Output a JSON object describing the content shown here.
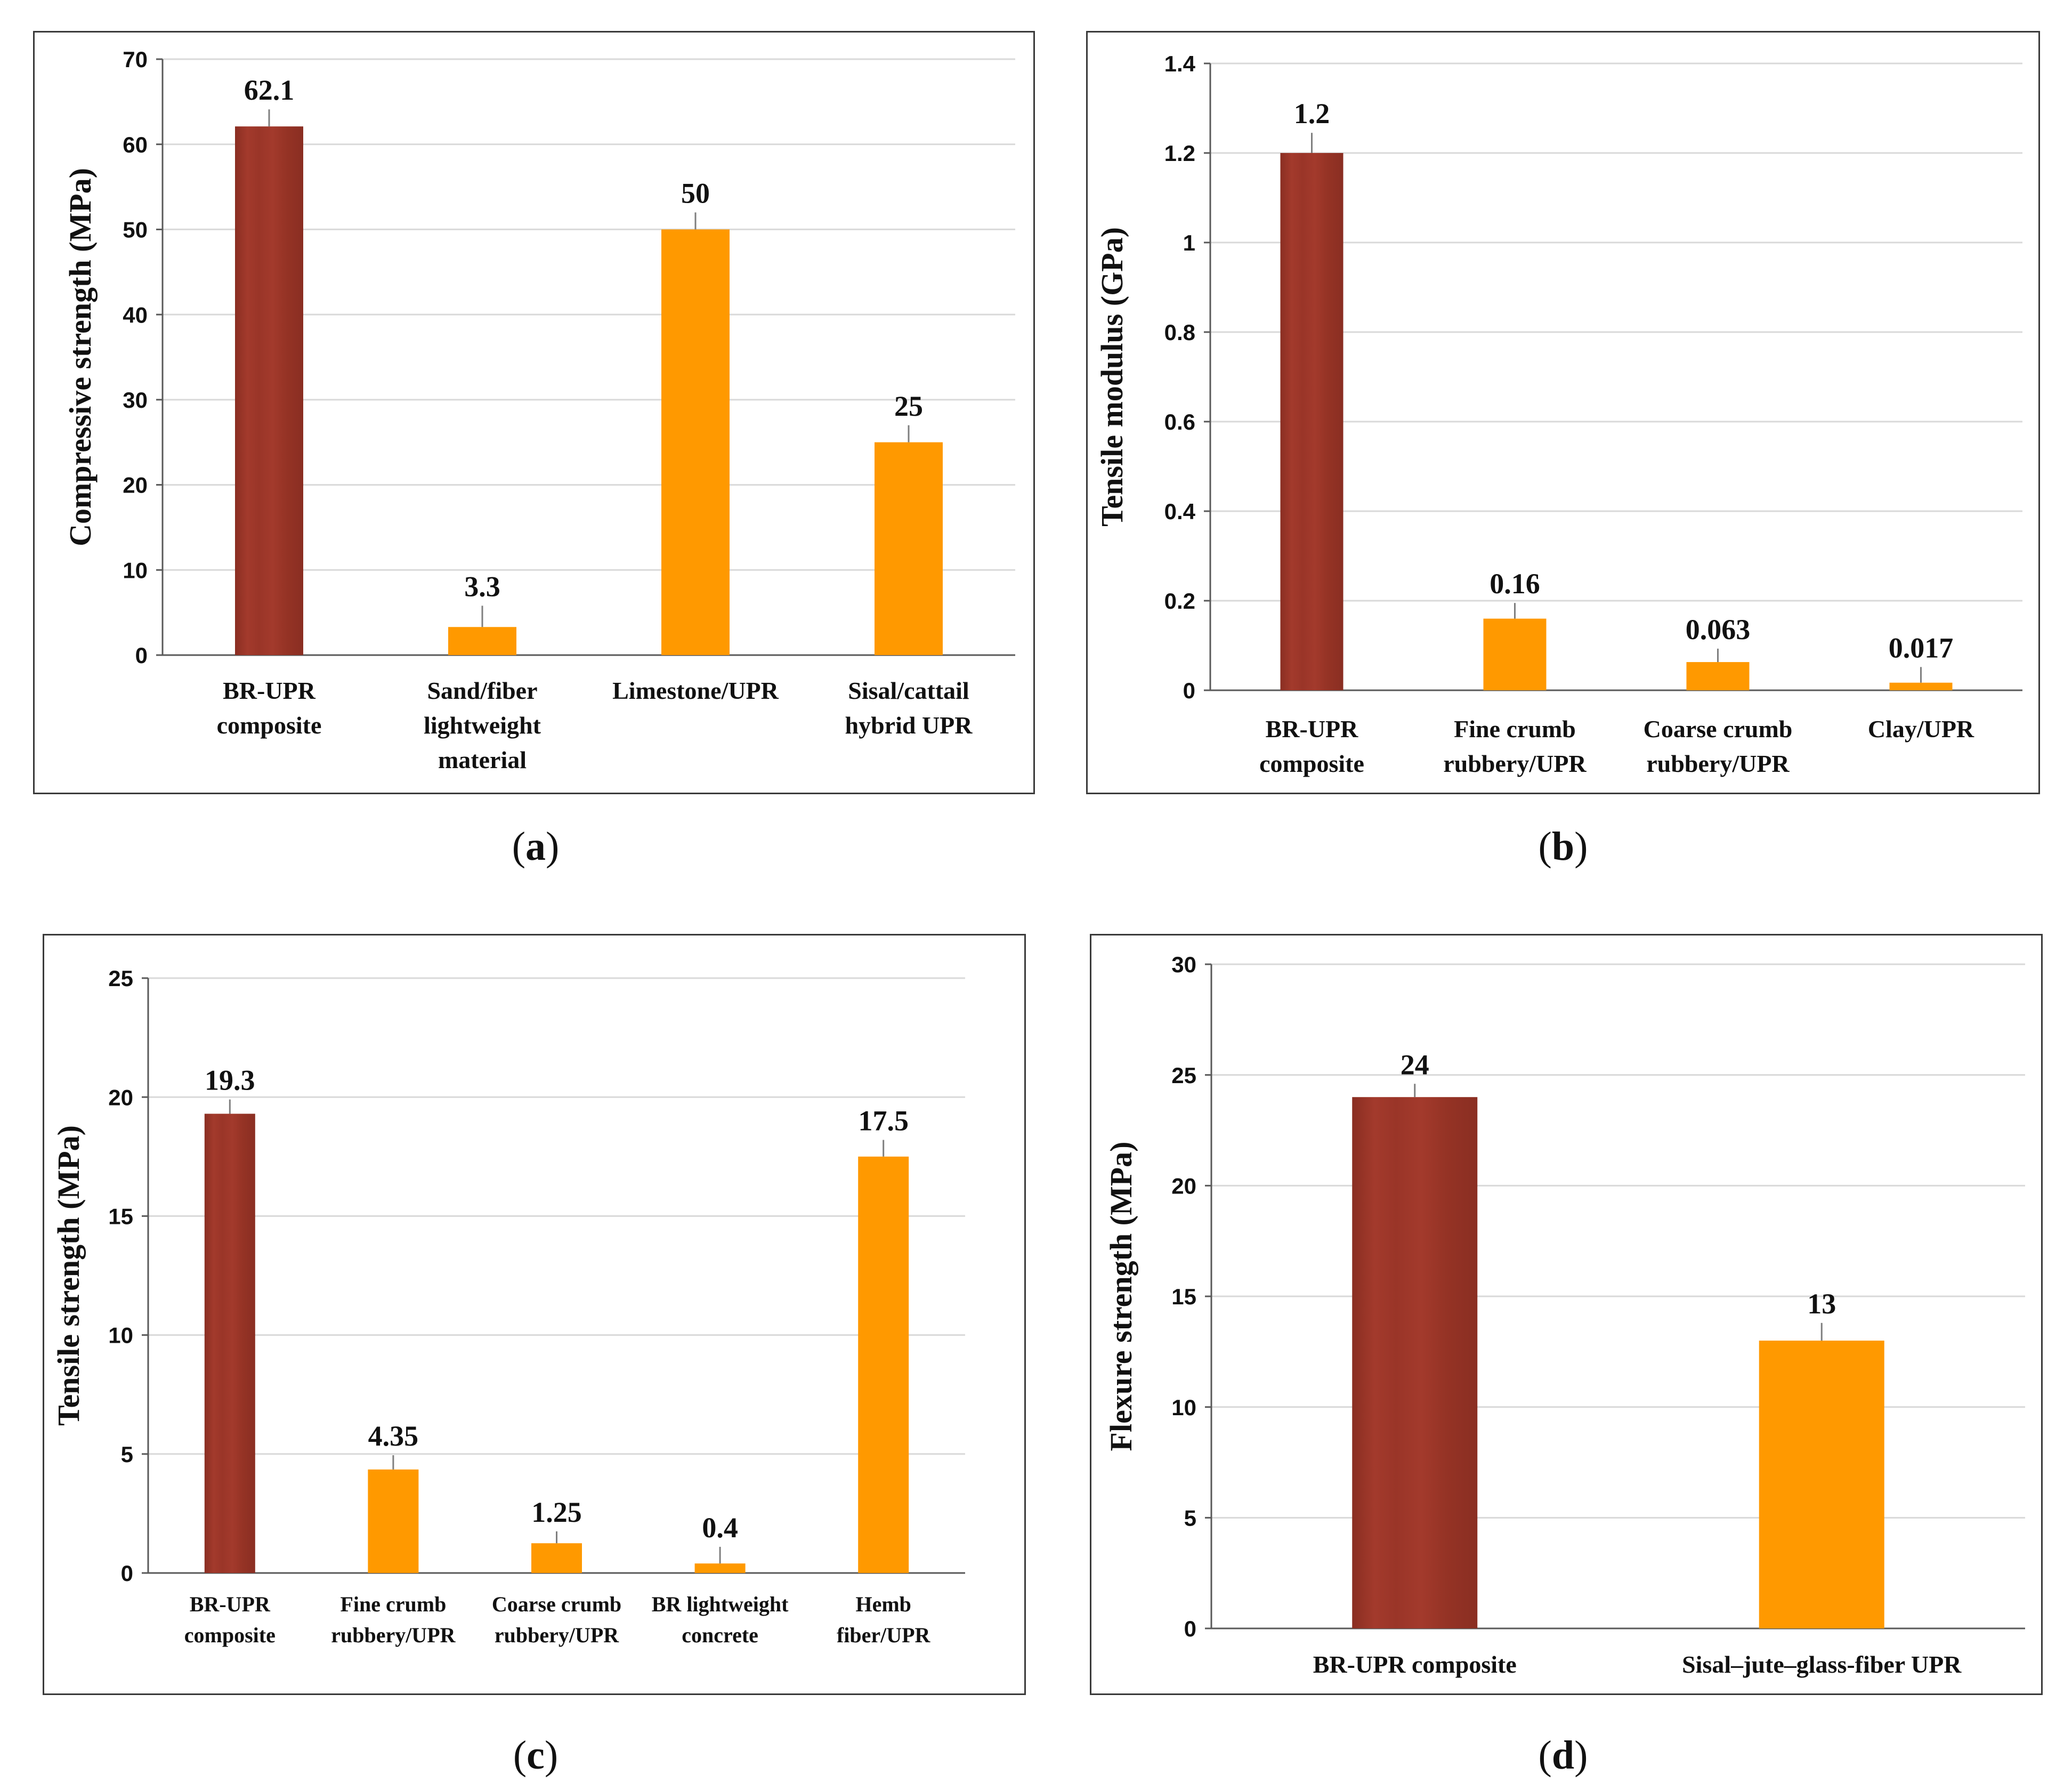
{
  "colors": {
    "primary_bar": "#A33A2C",
    "primary_bar_dark": "#8A2E22",
    "other_bar": "#FF9900",
    "grid": "#d9d9d9",
    "axis": "#595959",
    "error_bar": "#7f7f7f"
  },
  "captions": [
    "a",
    "b",
    "c",
    "d"
  ],
  "chart_data": [
    {
      "type": "bar",
      "ylabel": "Compressive  strength (MPa)",
      "ylim": [
        0,
        70
      ],
      "yticks": [
        0,
        10,
        20,
        30,
        40,
        50,
        60,
        70
      ],
      "categories": [
        [
          "BR-UPR",
          "composite"
        ],
        [
          "Sand/fiber",
          "lightweight",
          "material"
        ],
        [
          "Limestone/UPR"
        ],
        [
          "Sisal/cattail",
          "hybrid UPR"
        ]
      ],
      "values": [
        62.1,
        3.3,
        50,
        25
      ],
      "value_labels": [
        "62.1",
        "3.3",
        "50",
        "25"
      ],
      "error": [
        2,
        2.5,
        2,
        2
      ],
      "highlight": [
        true,
        false,
        false,
        false
      ],
      "grid": true
    },
    {
      "type": "bar",
      "ylabel": "Tensile  modulus (GPa)",
      "ylim": [
        0,
        1.4
      ],
      "yticks": [
        "0",
        "0.2",
        "0.4",
        "0.6",
        "0.8",
        "1",
        "1.2",
        "1.4"
      ],
      "categories": [
        [
          "BR-UPR",
          "composite"
        ],
        [
          "Fine crumb",
          "rubbery/UPR"
        ],
        [
          "Coarse crumb",
          "rubbery/UPR"
        ],
        [
          "Clay/UPR"
        ]
      ],
      "values": [
        1.2,
        0.16,
        0.063,
        0.017
      ],
      "value_labels": [
        "1.2",
        "0.16",
        "0.063",
        "0.017"
      ],
      "error": [
        0.045,
        0.035,
        0.03,
        0.035
      ],
      "highlight": [
        true,
        false,
        false,
        false
      ],
      "grid": true
    },
    {
      "type": "bar",
      "ylabel": "Tensile  strength (MPa)",
      "ylim": [
        0,
        25
      ],
      "yticks": [
        0,
        5,
        10,
        15,
        20,
        25
      ],
      "categories": [
        [
          "BR-UPR",
          "composite"
        ],
        [
          "Fine crumb",
          "rubbery/UPR"
        ],
        [
          "Coarse crumb",
          "rubbery/UPR"
        ],
        [
          "BR lightweight",
          "concrete"
        ],
        [
          "Hemb",
          "fiber/UPR"
        ]
      ],
      "values": [
        19.3,
        4.35,
        1.25,
        0.4,
        17.5
      ],
      "value_labels": [
        "19.3",
        "4.35",
        "1.25",
        "0.4",
        "17.5"
      ],
      "error": [
        0.6,
        0.6,
        0.5,
        0.7,
        0.7
      ],
      "highlight": [
        true,
        false,
        false,
        false,
        false
      ],
      "grid": true
    },
    {
      "type": "bar",
      "ylabel": "Flexure  strength (MPa)",
      "ylim": [
        0,
        30
      ],
      "yticks": [
        0,
        5,
        10,
        15,
        20,
        25,
        30
      ],
      "categories": [
        [
          "BR-UPR composite"
        ],
        [
          "Sisal–jute–glass-fiber UPR"
        ]
      ],
      "values": [
        24,
        13
      ],
      "value_labels": [
        "24",
        "13"
      ],
      "error": [
        0.6,
        0.8
      ],
      "highlight": [
        true,
        false
      ],
      "grid": true
    }
  ]
}
